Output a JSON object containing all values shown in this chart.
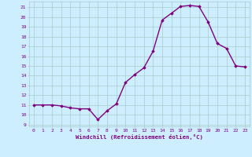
{
  "x": [
    0,
    1,
    2,
    3,
    4,
    5,
    6,
    7,
    8,
    9,
    10,
    11,
    12,
    13,
    14,
    15,
    16,
    17,
    18,
    19,
    20,
    21,
    22,
    23
  ],
  "y": [
    11,
    11,
    11,
    10.9,
    10.7,
    10.6,
    10.6,
    9.5,
    10.4,
    11.1,
    13.3,
    14.1,
    14.8,
    16.5,
    19.7,
    20.4,
    21.1,
    21.2,
    21.1,
    19.5,
    17.3,
    16.8,
    15.0,
    14.9
  ],
  "xlabel": "Windchill (Refroidissement éolien,°C)",
  "xlim": [
    -0.5,
    23.5
  ],
  "ylim": [
    8.8,
    21.6
  ],
  "yticks": [
    9,
    10,
    11,
    12,
    13,
    14,
    15,
    16,
    17,
    18,
    19,
    20,
    21
  ],
  "xticks": [
    0,
    1,
    2,
    3,
    4,
    5,
    6,
    7,
    8,
    9,
    10,
    11,
    12,
    13,
    14,
    15,
    16,
    17,
    18,
    19,
    20,
    21,
    22,
    23
  ],
  "line_color": "#800080",
  "marker": "D",
  "marker_size": 1.8,
  "bg_color": "#cceeff",
  "grid_color": "#aacccc",
  "xlabel_color": "#800080",
  "tick_color": "#800080",
  "line_width": 1.0,
  "tick_fontsize": 4.5,
  "xlabel_fontsize": 5.2
}
